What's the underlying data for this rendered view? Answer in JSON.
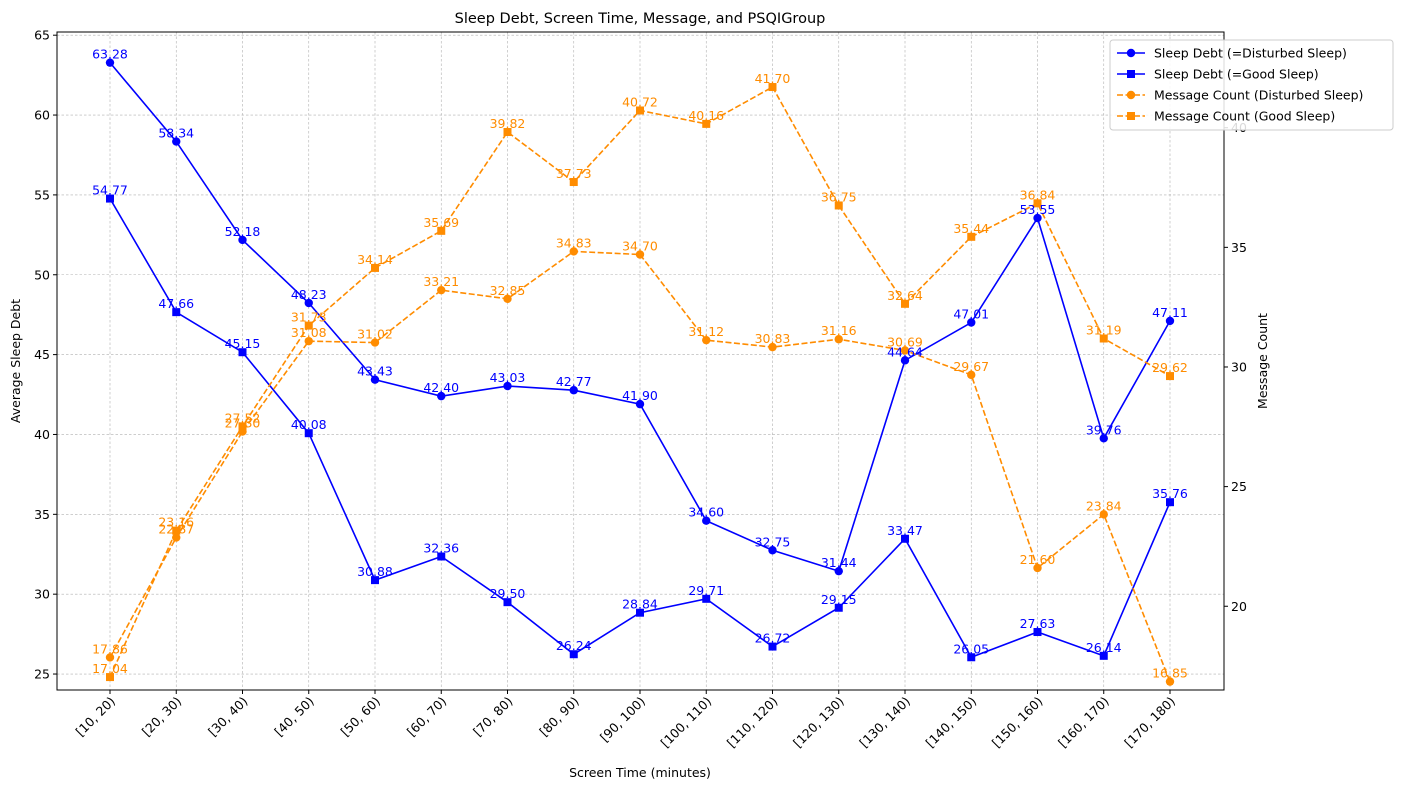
{
  "chart_data": {
    "type": "line",
    "title": "Sleep Debt, Screen Time, Message, and PSQIGroup",
    "xlabel": "Screen Time (minutes)",
    "ylabel_left": "Average Sleep Debt",
    "ylabel_right": "Message Count",
    "categories": [
      "[10, 20)",
      "[20, 30)",
      "[30, 40)",
      "[40, 50)",
      "[50, 60)",
      "[60, 70)",
      "[70, 80)",
      "[80, 90)",
      "[90, 100)",
      "[100, 110)",
      "[110, 120)",
      "[120, 130)",
      "[130, 140)",
      "[140, 150)",
      "[150, 160)",
      "[160, 170)",
      "[170, 180)"
    ],
    "ylim_left": [
      24.0,
      65.2
    ],
    "ylim_right": [
      16.5,
      44.0
    ],
    "yticks_left": [
      25,
      30,
      35,
      40,
      45,
      50,
      55,
      60,
      65
    ],
    "yticks_right": [
      20,
      25,
      30,
      35,
      40
    ],
    "grid": true,
    "legend_position": "top-right",
    "series": [
      {
        "name": "Sleep Debt (=Disturbed Sleep)",
        "axis": "left",
        "color": "#0000ff",
        "marker": "circle",
        "dash": "solid",
        "values": [
          63.28,
          58.34,
          52.18,
          48.23,
          43.43,
          42.4,
          43.03,
          42.77,
          41.9,
          34.6,
          32.75,
          31.44,
          44.64,
          47.01,
          53.55,
          39.76,
          47.11
        ],
        "labels": [
          "63.28",
          "58.34",
          "52.18",
          "48.23",
          "43.43",
          "42.40",
          "43.03",
          "42.77",
          "41.90",
          "34.60",
          "32.75",
          "31.44",
          "44.64",
          "47.01",
          "53.55",
          "39.76",
          "47.11"
        ]
      },
      {
        "name": "Sleep Debt (=Good Sleep)",
        "axis": "left",
        "color": "#0000ff",
        "marker": "square",
        "dash": "solid",
        "values": [
          54.77,
          47.66,
          45.15,
          40.08,
          30.88,
          32.36,
          29.5,
          26.24,
          28.84,
          29.71,
          26.72,
          29.15,
          33.47,
          26.05,
          27.63,
          26.14,
          35.76
        ],
        "labels": [
          "54.77",
          "47.66",
          "45.15",
          "40.08",
          "30.88",
          "32.36",
          "29.50",
          "26.24",
          "28.84",
          "29.71",
          "26.72",
          "29.15",
          "33.47",
          "26.05",
          "27.63",
          "26.14",
          "35.76"
        ]
      },
      {
        "name": "Message Count (Disturbed Sleep)",
        "axis": "right",
        "color": "#ff8c00",
        "marker": "circle",
        "dash": "dashed",
        "values": [
          17.86,
          22.87,
          27.3,
          31.08,
          31.02,
          33.21,
          32.85,
          34.83,
          34.7,
          31.12,
          30.83,
          31.16,
          30.69,
          29.67,
          21.6,
          23.84,
          16.85
        ],
        "labels": [
          "17.86",
          "22.87",
          "27.30",
          "31.08",
          "31.02",
          "33.21",
          "32.85",
          "34.83",
          "34.70",
          "31.12",
          "30.83",
          "31.16",
          "30.69",
          "29.67",
          "21.60",
          "23.84",
          "16.85"
        ]
      },
      {
        "name": "Message Count (Good Sleep)",
        "axis": "right",
        "color": "#ff8c00",
        "marker": "square",
        "dash": "dashed",
        "values": [
          17.04,
          23.16,
          27.52,
          31.73,
          34.14,
          35.69,
          39.82,
          37.73,
          40.72,
          40.16,
          41.7,
          36.75,
          32.64,
          35.44,
          36.84,
          31.19,
          29.62
        ],
        "labels": [
          "17.04",
          "23.16",
          "27.52",
          "31.73",
          "34.14",
          "35.69",
          "39.82",
          "37.73",
          "40.72",
          "40.16",
          "41.70",
          "36.75",
          "32.64",
          "35.44",
          "36.84",
          "31.19",
          "29.62"
        ]
      }
    ]
  }
}
